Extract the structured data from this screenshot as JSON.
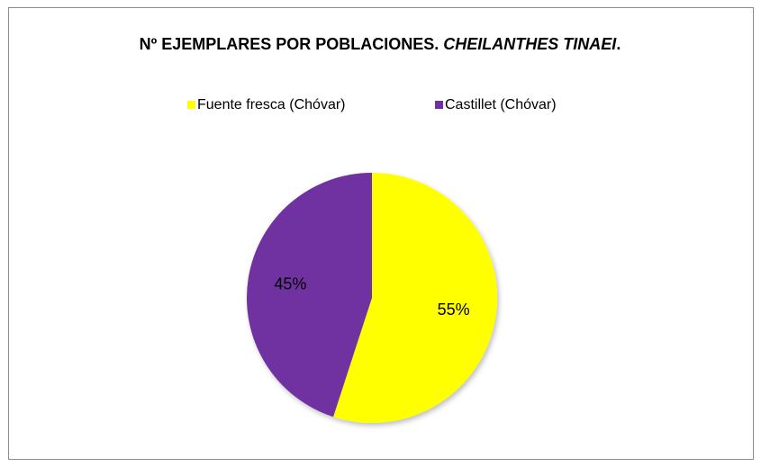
{
  "chart_data": {
    "type": "pie",
    "title": [
      "Nº EJEMPLARES POR POBLACIONES. ",
      "CHEILANTHES TINAEI",
      "."
    ],
    "categories": [
      "Fuente fresca (Chóvar)",
      "Castillet (Chóvar)"
    ],
    "values": [
      55,
      45
    ],
    "value_labels": [
      "55%",
      "45%"
    ],
    "colors": [
      "#ffff00",
      "#7030a0"
    ],
    "legend": "top"
  }
}
